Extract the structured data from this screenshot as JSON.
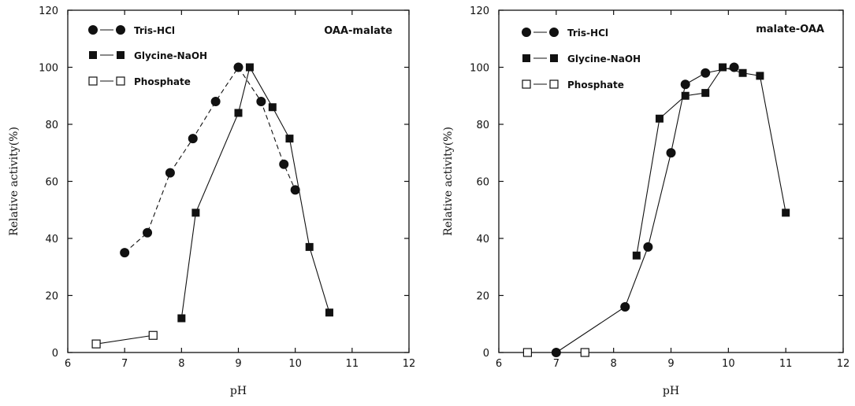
{
  "chart_data": [
    {
      "type": "line",
      "title": "OAA-malate",
      "xlabel": "pH",
      "ylabel": "Relative activity(%)",
      "xlim": [
        6,
        12
      ],
      "ylim": [
        0,
        120
      ],
      "xticks": [
        "6",
        "7",
        "8",
        "9",
        "10",
        "11",
        "12"
      ],
      "yticks": [
        "0",
        "20",
        "40",
        "60",
        "80",
        "100",
        "120"
      ],
      "grid": false,
      "legend_position": "top-left",
      "series": [
        {
          "name": "Tris-HCl",
          "marker": "filled-circle",
          "dashed": true,
          "x": [
            7.0,
            7.4,
            7.8,
            8.2,
            8.6,
            9.0,
            9.4,
            9.8,
            10.0
          ],
          "y": [
            35,
            42,
            63,
            75,
            88,
            100,
            88,
            66,
            57
          ]
        },
        {
          "name": "Glycine-NaOH",
          "marker": "filled-square",
          "dashed": false,
          "x": [
            8.0,
            8.25,
            9.0,
            9.2,
            9.6,
            9.9,
            10.25,
            10.6
          ],
          "y": [
            12,
            49,
            84,
            100,
            86,
            75,
            37,
            14
          ]
        },
        {
          "name": "Phosphate",
          "marker": "open-square",
          "dashed": false,
          "x": [
            6.5,
            7.5
          ],
          "y": [
            3,
            6
          ]
        }
      ]
    },
    {
      "type": "line",
      "title": "malate-OAA",
      "xlabel": "pH",
      "ylabel": "Relative activity(%)",
      "xlim": [
        6,
        12
      ],
      "ylim": [
        0,
        120
      ],
      "xticks": [
        "6",
        "7",
        "8",
        "9",
        "10",
        "11",
        "12"
      ],
      "yticks": [
        "0",
        "20",
        "40",
        "60",
        "80",
        "100",
        "120"
      ],
      "grid": false,
      "legend_position": "top-left",
      "series": [
        {
          "name": "Tris-HCl",
          "marker": "filled-circle",
          "dashed": false,
          "x": [
            7.0,
            8.2,
            8.6,
            9.0,
            9.25,
            9.6,
            10.1
          ],
          "y": [
            0,
            16,
            37,
            70,
            94,
            98,
            100
          ]
        },
        {
          "name": "Glycine-NaOH",
          "marker": "filled-square",
          "dashed": false,
          "x": [
            8.4,
            8.8,
            9.25,
            9.6,
            9.9,
            10.25,
            10.55,
            11.0
          ],
          "y": [
            34,
            82,
            90,
            91,
            100,
            98,
            97,
            49
          ]
        },
        {
          "name": "Phosphate",
          "marker": "open-square",
          "dashed": false,
          "x": [
            6.5,
            7.5
          ],
          "y": [
            0,
            0
          ]
        }
      ]
    }
  ]
}
